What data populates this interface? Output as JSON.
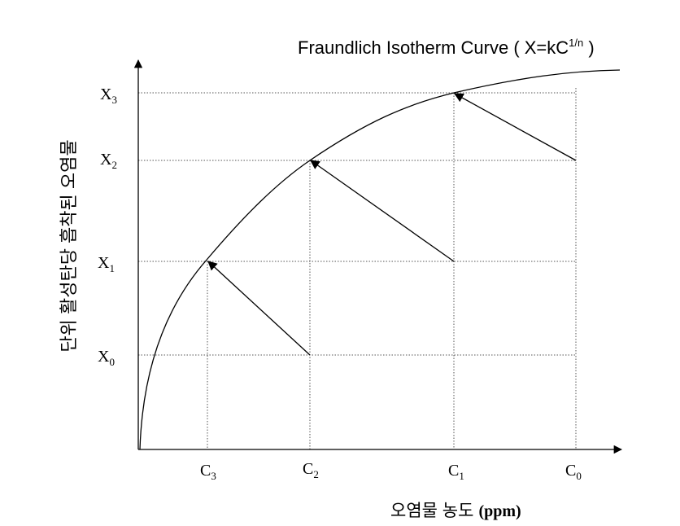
{
  "title": {
    "text": "Fraundlich Isotherm Curve ( X=kC",
    "sup": "1/n",
    "end": " )"
  },
  "y_axis_label": "단위 활성탄당 흡착된 오염물",
  "x_axis_label": {
    "text": "오염물 농도",
    "unit": "(ppm)"
  },
  "y_levels": [
    {
      "symbol": "X",
      "sub": "3"
    },
    {
      "symbol": "X",
      "sub": "2"
    },
    {
      "symbol": "X",
      "sub": "1"
    },
    {
      "symbol": "X",
      "sub": "0"
    }
  ],
  "x_levels": [
    {
      "symbol": "C",
      "sub": "3"
    },
    {
      "symbol": "C",
      "sub": "2"
    },
    {
      "symbol": "C",
      "sub": "1"
    },
    {
      "symbol": "C",
      "sub": "0"
    }
  ]
}
